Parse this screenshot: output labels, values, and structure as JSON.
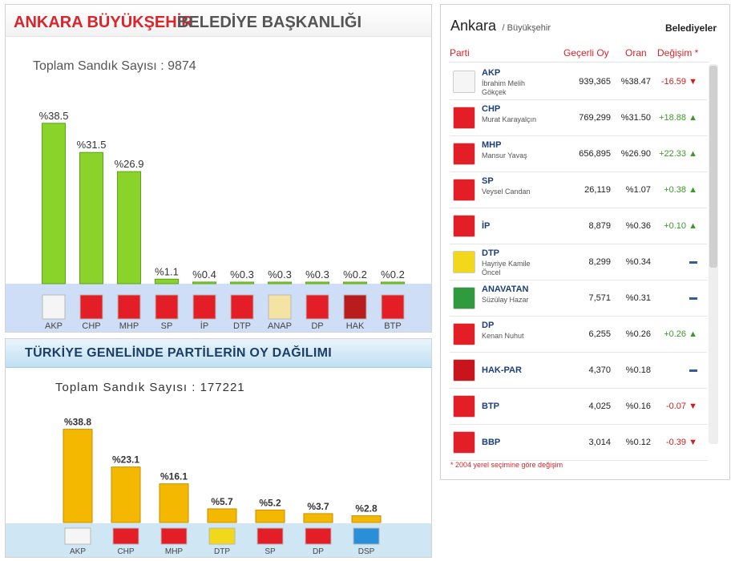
{
  "ankara_chart": {
    "title_red": "ANKARA BÜYÜKŞEHİR",
    "title_gray": "BELEDİYE BAŞKANLIĞI",
    "total_label": "Toplam Sandık Sayısı : 9874"
  },
  "turkey_chart": {
    "title": "TÜRKİYE GENELİNDE PARTİLERİN OY DAĞILIMI",
    "total_label": "Toplam Sandık Sayısı : 177221"
  },
  "chart_data": [
    {
      "type": "bar",
      "title": "ANKARA BÜYÜKŞEHİR BELEDİYE BAŞKANLIĞI",
      "categories": [
        "AKP",
        "CHP",
        "MHP",
        "SP",
        "İP",
        "DTP",
        "ANAP",
        "DP",
        "HAK",
        "BTP"
      ],
      "values": [
        38.5,
        31.5,
        26.9,
        1.1,
        0.4,
        0.3,
        0.3,
        0.3,
        0.2,
        0.2
      ],
      "value_labels": [
        "%38.5",
        "%31.5",
        "%26.9",
        "%1.1",
        "%0.4",
        "%0.3",
        "%0.3",
        "%0.3",
        "%0.2",
        "%0.2"
      ],
      "logo_colors": [
        "#f5f5f5",
        "#e41e26",
        "#e41e26",
        "#e41e26",
        "#e41e26",
        "#e41e26",
        "#f4e3a3",
        "#e41e26",
        "#b81c1c",
        "#e41e26"
      ],
      "bar_color": "#8ad32a",
      "ylim": [
        0,
        40
      ]
    },
    {
      "type": "bar",
      "title": "TÜRKİYE GENELİNDE PARTİLERİN OY DAĞILIMI",
      "categories": [
        "AKP",
        "CHP",
        "MHP",
        "DTP",
        "SP",
        "DP",
        "DSP"
      ],
      "values": [
        38.8,
        23.1,
        16.1,
        5.7,
        5.2,
        3.7,
        2.8
      ],
      "value_labels": [
        "%38.8",
        "%23.1",
        "%16.1",
        "%5.7",
        "%5.2",
        "%3.7",
        "%2.8"
      ],
      "logo_colors": [
        "#f5f5f5",
        "#e41e26",
        "#e41e26",
        "#f2d81a",
        "#e41e26",
        "#e41e26",
        "#2a8ed8"
      ],
      "bar_color": "#f4b800",
      "ylim": [
        0,
        40
      ]
    }
  ],
  "results": {
    "city": "Ankara",
    "subtitle": "/ Büyükşehir",
    "tab": "Belediyeler",
    "columns": {
      "party": "Parti",
      "votes": "Geçerli Oy",
      "share": "Oran",
      "change": "Değişim *"
    },
    "rows": [
      {
        "party": "AKP",
        "candidate": "İbrahim Melih Gökçek",
        "votes": "939,365",
        "share": "%38.47",
        "change": "-16.59",
        "dir": "down",
        "logo": "#f5f5f5"
      },
      {
        "party": "CHP",
        "candidate": "Murat Karayalçın",
        "votes": "769,299",
        "share": "%31.50",
        "change": "+18.88",
        "dir": "up",
        "logo": "#e41e26"
      },
      {
        "party": "MHP",
        "candidate": "Mansur Yavaş",
        "votes": "656,895",
        "share": "%26.90",
        "change": "+22.33",
        "dir": "up",
        "logo": "#e41e26"
      },
      {
        "party": "SP",
        "candidate": "Veysel Candan",
        "votes": "26,119",
        "share": "%1.07",
        "change": "+0.38",
        "dir": "up",
        "logo": "#e41e26"
      },
      {
        "party": "İP",
        "candidate": "",
        "votes": "8,879",
        "share": "%0.36",
        "change": "+0.10",
        "dir": "up",
        "logo": "#e41e26"
      },
      {
        "party": "DTP",
        "candidate": "Hayriye Kamile Öncel",
        "votes": "8,299",
        "share": "%0.34",
        "change": "",
        "dir": "none",
        "logo": "#f2d81a"
      },
      {
        "party": "ANAVATAN",
        "candidate": "Süzülay Hazar",
        "votes": "7,571",
        "share": "%0.31",
        "change": "",
        "dir": "none",
        "logo": "#2f9a3e"
      },
      {
        "party": "DP",
        "candidate": "Kenan Nuhut",
        "votes": "6,255",
        "share": "%0.26",
        "change": "+0.26",
        "dir": "up",
        "logo": "#e41e26"
      },
      {
        "party": "HAK-PAR",
        "candidate": "",
        "votes": "4,370",
        "share": "%0.18",
        "change": "",
        "dir": "none",
        "logo": "#c8141a"
      },
      {
        "party": "BTP",
        "candidate": "",
        "votes": "4,025",
        "share": "%0.16",
        "change": "-0.07",
        "dir": "down",
        "logo": "#e41e26"
      },
      {
        "party": "BBP",
        "candidate": "",
        "votes": "3,014",
        "share": "%0.12",
        "change": "-0.39",
        "dir": "down",
        "logo": "#e41e26"
      }
    ],
    "footnote": "* 2004 yerel seçimine göre değişim"
  }
}
